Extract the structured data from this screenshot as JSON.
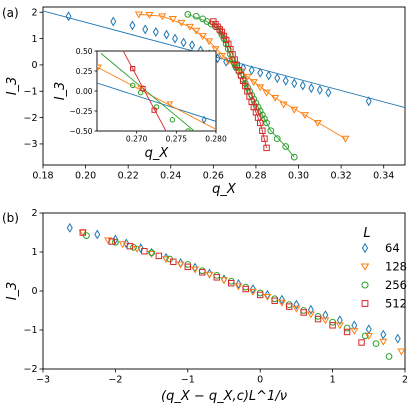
{
  "figure": {
    "panel_a_label": "(a)",
    "panel_b_label": "(b)"
  },
  "colors": {
    "L64": "#1f77b4",
    "L128": "#ff7f0e",
    "L256": "#2ca02c",
    "L512": "#d62728"
  },
  "chart_data": [
    {
      "id": "panel-a",
      "type": "line",
      "xlabel": "q_X",
      "ylabel": "I_3",
      "xlim": [
        0.18,
        0.35
      ],
      "ylim": [
        -3.8,
        2.2
      ],
      "xticks": [
        0.18,
        0.2,
        0.22,
        0.24,
        0.26,
        0.28,
        0.3,
        0.32,
        0.34
      ],
      "xtick_labels": [
        "0.18",
        "0.20",
        "0.22",
        "0.24",
        "0.26",
        "0.28",
        "0.30",
        "0.32",
        "0.34"
      ],
      "yticks": [
        2,
        1,
        0,
        -1,
        -2,
        -3
      ],
      "ytick_labels": [
        "2",
        "1",
        "0",
        "−1",
        "−2",
        "−3"
      ],
      "series": [
        {
          "L": 64,
          "marker": "diamond",
          "x": [
            0.192,
            0.213,
            0.222,
            0.228,
            0.233,
            0.238,
            0.242,
            0.246,
            0.25,
            0.254,
            0.258,
            0.262,
            0.266,
            0.27,
            0.274,
            0.278,
            0.282,
            0.286,
            0.29,
            0.294,
            0.298,
            0.302,
            0.306,
            0.31,
            0.314,
            0.333
          ],
          "y": [
            1.85,
            1.65,
            1.5,
            1.35,
            1.25,
            1.15,
            1.0,
            0.85,
            0.75,
            0.55,
            0.4,
            0.25,
            0.12,
            -0.05,
            -0.12,
            -0.2,
            -0.3,
            -0.4,
            -0.5,
            -0.6,
            -0.7,
            -0.78,
            -0.88,
            -0.95,
            -1.05,
            -1.38
          ],
          "fit_x": [
            0.18,
            0.35
          ],
          "fit_y": [
            2.05,
            -1.62
          ]
        },
        {
          "L": 128,
          "marker": "triangle-down",
          "x": [
            0.225,
            0.23,
            0.236,
            0.241,
            0.245,
            0.249,
            0.252,
            0.255,
            0.258,
            0.261,
            0.264,
            0.267,
            0.27,
            0.273,
            0.276,
            0.279,
            0.282,
            0.285,
            0.289,
            0.293,
            0.298,
            0.303,
            0.309,
            0.322
          ],
          "y": [
            1.92,
            1.9,
            1.85,
            1.75,
            1.6,
            1.45,
            1.3,
            1.1,
            0.9,
            0.6,
            0.35,
            0.15,
            -0.05,
            -0.25,
            -0.45,
            -0.65,
            -0.85,
            -1.05,
            -1.25,
            -1.5,
            -1.7,
            -1.9,
            -2.2,
            -2.8
          ],
          "fit_x": [
            0.225,
            0.236,
            0.249,
            0.258,
            0.267,
            0.276,
            0.289,
            0.303,
            0.322
          ],
          "fit_y": [
            1.92,
            1.85,
            1.45,
            0.9,
            0.15,
            -0.45,
            -1.25,
            -1.9,
            -2.8
          ]
        },
        {
          "L": 256,
          "marker": "circle",
          "x": [
            0.248,
            0.252,
            0.255,
            0.257,
            0.259,
            0.261,
            0.263,
            0.264,
            0.265,
            0.266,
            0.267,
            0.268,
            0.269,
            0.27,
            0.271,
            0.272,
            0.273,
            0.274,
            0.275,
            0.276,
            0.277,
            0.278,
            0.279,
            0.28,
            0.281,
            0.282,
            0.283,
            0.284,
            0.285,
            0.287,
            0.29,
            0.294,
            0.298
          ],
          "y": [
            1.92,
            1.85,
            1.75,
            1.65,
            1.55,
            1.45,
            1.3,
            1.15,
            1.0,
            0.8,
            0.6,
            0.4,
            0.2,
            0.05,
            -0.1,
            -0.25,
            -0.4,
            -0.55,
            -0.7,
            -0.85,
            -1.0,
            -1.15,
            -1.3,
            -1.45,
            -1.6,
            -1.75,
            -1.9,
            -2.05,
            -2.2,
            -2.5,
            -2.8,
            -3.1,
            -3.5
          ],
          "fit_x": [
            0.248,
            0.257,
            0.263,
            0.266,
            0.269,
            0.272,
            0.276,
            0.281,
            0.287,
            0.294,
            0.298
          ],
          "fit_y": [
            1.92,
            1.65,
            1.3,
            0.8,
            0.2,
            -0.25,
            -0.85,
            -1.6,
            -2.5,
            -3.1,
            -3.5
          ]
        },
        {
          "L": 512,
          "marker": "square",
          "x": [
            0.26,
            0.261,
            0.262,
            0.263,
            0.264,
            0.265,
            0.266,
            0.267,
            0.268,
            0.269,
            0.27,
            0.271,
            0.272,
            0.273,
            0.274,
            0.275,
            0.276,
            0.277,
            0.278,
            0.279,
            0.28,
            0.281,
            0.282,
            0.283,
            0.284,
            0.285
          ],
          "y": [
            1.65,
            1.55,
            1.45,
            1.35,
            1.25,
            1.1,
            0.95,
            0.8,
            0.6,
            0.4,
            0.2,
            0.0,
            -0.2,
            -0.4,
            -0.6,
            -0.8,
            -1.0,
            -1.2,
            -1.4,
            -1.6,
            -1.8,
            -2.0,
            -2.2,
            -2.5,
            -2.8,
            -3.15
          ],
          "fit_x": [
            0.26,
            0.264,
            0.267,
            0.27,
            0.274,
            0.278,
            0.282,
            0.285
          ],
          "fit_y": [
            1.65,
            1.25,
            0.8,
            0.2,
            -0.6,
            -1.4,
            -2.2,
            -3.15
          ]
        }
      ],
      "inset": {
        "xlabel": "q_X",
        "ylabel": "I_3",
        "xlim": [
          0.265,
          0.28
        ],
        "ylim": [
          -0.5,
          0.5
        ],
        "xticks": [
          0.27,
          0.275,
          0.28
        ],
        "xtick_labels": [
          "0.270",
          "0.275",
          "0.280"
        ],
        "yticks": [
          0.5,
          0.25,
          0,
          -0.25,
          -0.5
        ],
        "ytick_labels": [
          "0.50",
          "0.25",
          "0.00",
          "−0.25",
          "−0.50"
        ],
        "series": [
          {
            "L": 64,
            "x": [
              0.2785
            ],
            "y": [
              -0.36
            ],
            "fit_x": [
              0.265,
              0.28
            ],
            "fit_y": [
              0.1,
              -0.38
            ]
          },
          {
            "L": 128,
            "x": [
              0.2652,
              0.2705,
              0.2742
            ],
            "y": [
              0.3,
              0.04,
              -0.16
            ],
            "fit_x": [
              0.265,
              0.28
            ],
            "fit_y": [
              0.3,
              -0.48
            ]
          },
          {
            "L": 256,
            "x": [
              0.2695,
              0.2705,
              0.2725,
              0.2745,
              0.2765
            ],
            "y": [
              0.07,
              -0.02,
              -0.2,
              -0.36,
              -0.5
            ],
            "fit_x": [
              0.2655,
              0.2775
            ],
            "fit_y": [
              0.47,
              -0.52
            ]
          },
          {
            "L": 512,
            "x": [
              0.2695,
              0.2708,
              0.2722
            ],
            "y": [
              0.28,
              0.03,
              -0.24
            ],
            "fit_x": [
              0.2682,
              0.2738
            ],
            "fit_y": [
              0.52,
              -0.52
            ]
          }
        ]
      }
    },
    {
      "id": "panel-b",
      "type": "scatter",
      "xlabel": "(q_X − q_X,c)L^1/ν",
      "ylabel": "I_3",
      "xlim": [
        -3,
        2
      ],
      "ylim": [
        -2,
        2
      ],
      "xticks": [
        -3,
        -2,
        -1,
        0,
        1,
        2
      ],
      "xtick_labels": [
        "−3",
        "−2",
        "−1",
        "0",
        "1",
        "2"
      ],
      "yticks": [
        2,
        1,
        0,
        -1,
        -2
      ],
      "ytick_labels": [
        "2",
        "1",
        "0",
        "−1",
        "−2"
      ],
      "legend": {
        "title": "L",
        "position": "right",
        "entries": [
          "64",
          "128",
          "256",
          "512"
        ]
      },
      "series": [
        {
          "L": 64,
          "marker": "diamond",
          "x": [
            -2.63,
            -2.25,
            -2.0,
            -1.85,
            -1.65,
            -1.5,
            -1.3,
            -1.1,
            -0.9,
            -0.7,
            -0.5,
            -0.3,
            -0.1,
            0.1,
            0.3,
            0.5,
            0.7,
            0.9,
            1.1,
            1.3,
            1.5,
            1.7,
            1.9
          ],
          "y": [
            1.62,
            1.45,
            1.32,
            1.22,
            1.1,
            0.98,
            0.85,
            0.72,
            0.6,
            0.45,
            0.3,
            0.18,
            0.05,
            -0.1,
            -0.22,
            -0.35,
            -0.48,
            -0.62,
            -0.75,
            -0.88,
            -0.98,
            -1.12,
            -1.22
          ]
        },
        {
          "L": 128,
          "marker": "triangle-down",
          "x": [
            -2.45,
            -2.1,
            -1.9,
            -1.7,
            -1.5,
            -1.3,
            -1.1,
            -0.9,
            -0.7,
            -0.5,
            -0.3,
            -0.1,
            0.1,
            0.3,
            0.5,
            0.7,
            0.9,
            1.1,
            1.3,
            1.5,
            1.7,
            1.95
          ],
          "y": [
            1.5,
            1.3,
            1.2,
            1.08,
            0.95,
            0.82,
            0.68,
            0.55,
            0.42,
            0.28,
            0.12,
            -0.02,
            -0.15,
            -0.3,
            -0.45,
            -0.6,
            -0.75,
            -0.88,
            -1.02,
            -1.15,
            -1.3,
            -1.55
          ]
        },
        {
          "L": 256,
          "marker": "circle",
          "x": [
            -2.4,
            -2.0,
            -1.75,
            -1.5,
            -1.25,
            -1.0,
            -0.8,
            -0.6,
            -0.4,
            -0.2,
            0.0,
            0.2,
            0.4,
            0.6,
            0.8,
            1.0,
            1.2,
            1.45,
            1.6,
            1.78
          ],
          "y": [
            1.42,
            1.25,
            1.12,
            0.98,
            0.82,
            0.68,
            0.52,
            0.4,
            0.25,
            0.1,
            -0.05,
            -0.2,
            -0.35,
            -0.5,
            -0.65,
            -0.8,
            -0.95,
            -1.15,
            -1.35,
            -1.68
          ]
        },
        {
          "L": 512,
          "marker": "square",
          "x": [
            -2.45,
            -2.05,
            -1.8,
            -1.6,
            -1.4,
            -1.2,
            -1.0,
            -0.8,
            -0.6,
            -0.4,
            -0.2,
            0.0,
            0.2,
            0.4,
            0.6,
            0.8,
            1.0,
            1.2,
            1.4
          ],
          "y": [
            1.5,
            1.27,
            1.15,
            1.02,
            0.9,
            0.75,
            0.62,
            0.48,
            0.35,
            0.2,
            0.05,
            -0.1,
            -0.25,
            -0.4,
            -0.55,
            -0.72,
            -0.88,
            -1.05,
            -1.32
          ]
        }
      ]
    }
  ]
}
